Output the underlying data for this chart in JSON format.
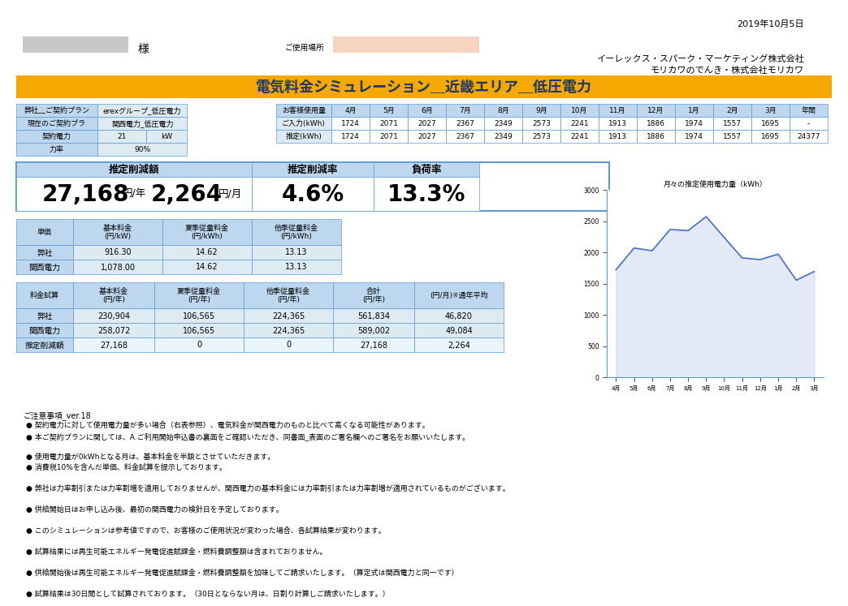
{
  "date_text": "2019年10月5日",
  "company_line1": "イーレックス・スパーク・マーケティング株式会社",
  "company_line2": "モリカワのでんき・株式会社モリカワ",
  "title": "電気料金シミュレーション＿近畿エリア＿低圧電力",
  "title_bg": "#F5A800",
  "customer_name_bg": "#F5D5C0",
  "header_info": {
    "our_plan_label": "弊社＿ご契約プラン",
    "our_plan_value": "erexグループ_低圧電力",
    "current_plan_label": "現在のご契約プラ",
    "current_plan_value": "関西電力_低圧電力",
    "contract_power_label": "契約電力",
    "contract_power_value": "21",
    "contract_power_unit": "kW",
    "load_factor_label": "力率",
    "load_factor_value": "90%"
  },
  "usage_table": {
    "headers": [
      "お客様使用量",
      "4月",
      "5月",
      "6月",
      "7月",
      "8月",
      "9月",
      "10月",
      "11月",
      "12月",
      "1月",
      "2月",
      "3月",
      "年間"
    ],
    "row1_label": "ご入力(kWh)",
    "row1_values": [
      "1724",
      "2071",
      "2027",
      "2367",
      "2349",
      "2573",
      "2241",
      "1913",
      "1886",
      "1974",
      "1557",
      "1695",
      "-"
    ],
    "row2_label": "推定(kWh)",
    "row2_values": [
      "1724",
      "2071",
      "2027",
      "2367",
      "2349",
      "2573",
      "2241",
      "1913",
      "1886",
      "1974",
      "1557",
      "1695",
      "24377"
    ]
  },
  "summary": {
    "reduction_label": "推定削減額",
    "reduction_value": "27,168",
    "reduction_unit": "円/年",
    "monthly_label": "",
    "monthly_value": "2,264",
    "monthly_unit": "円/月",
    "rate_label": "推定削減率",
    "rate_value": "4.6%",
    "load_label": "負荷率",
    "load_value": "13.3%"
  },
  "unit_price_table": {
    "col_headers": [
      "単価",
      "基本料金\n(円/kW)",
      "夏季従量料金\n(円/kWh)",
      "他季従量料金\n(円/kWh)"
    ],
    "rows": [
      [
        "弊社",
        "916.30",
        "14.62",
        "13.13"
      ],
      [
        "関西電力",
        "1,078.00",
        "14.62",
        "13.13"
      ]
    ]
  },
  "fee_table": {
    "col_headers": [
      "料金試算",
      "基本料金\n(円/年)",
      "夏季従量料金\n(円/年)",
      "他季従量料金\n(円/年)",
      "合計\n(円/年)",
      "(円/月)※通年平均"
    ],
    "rows": [
      [
        "弊社",
        "230,904",
        "106,565",
        "224,365",
        "561,834",
        "46,820"
      ],
      [
        "関西電力",
        "258,072",
        "106,565",
        "224,365",
        "589,002",
        "49,084"
      ],
      [
        "推定削減額",
        "27,168",
        "0",
        "0",
        "27,168",
        "2,264"
      ]
    ]
  },
  "chart_months": [
    "4月",
    "5月",
    "6月",
    "7月",
    "8月",
    "9月",
    "10月",
    "11月",
    "12月",
    "1月",
    "2月",
    "3月"
  ],
  "chart_values": [
    1724,
    2071,
    2027,
    2367,
    2349,
    2573,
    2241,
    1913,
    1886,
    1974,
    1557,
    1695
  ],
  "chart_title": "月々の推定使用電力量（kWh）",
  "notes_title": "ご注意事項_ver.18",
  "notes": [
    "契約電力に対して使用電力量が多い場合（右表参照）、電気料金が関西電力のものと比べて高くなる可能性があります。",
    "本ご契約プランに関しては、A.ご利用開始申込書の裏面をご確認いただき、同書面_表面のご署名欄へのご署名をお願いいたします。",
    "",
    "使用電力量が0kWhとなる月は、基本料金を半額とさせていただきます。",
    "消費税10%を含んだ単価、料金試算を提示しております。",
    "",
    "弊社は力率割引または力率割増を適用しておりませんが、関西電力の基本料金には力率割引または力率割増が適用されているものがございます。",
    "",
    "供給開始日はお申し込み後、最初の関西電力の検針日を予定しております。",
    "",
    "このシミュレーションは参考値ですので、お客様のご使用状況が変わった場合、各試算結果が変わります。",
    "",
    "試算結果には再生可能エネルギー発電促進賦課金・燃料費調整額は含まれておりません。",
    "",
    "供給開始後は再生可能エネルギー発電促進賦課金・燃料費調整額を加味してご請求いたします。（算定式は関西電力と同一です）",
    "",
    "試算結果は30日間として試算されております。（30日とならない月は、日割り計算しご請求いたします。）"
  ],
  "table_header_bg": "#BDD7EE",
  "table_row_bg": "#DEEAF1",
  "table_border": "#5B9BD5",
  "light_blue_bg": "#EAF4FB",
  "white": "#FFFFFF",
  "black": "#000000",
  "dark_blue_text": "#1F3864",
  "note_text_color": "#000000",
  "bg_color": "#FFFFFF"
}
